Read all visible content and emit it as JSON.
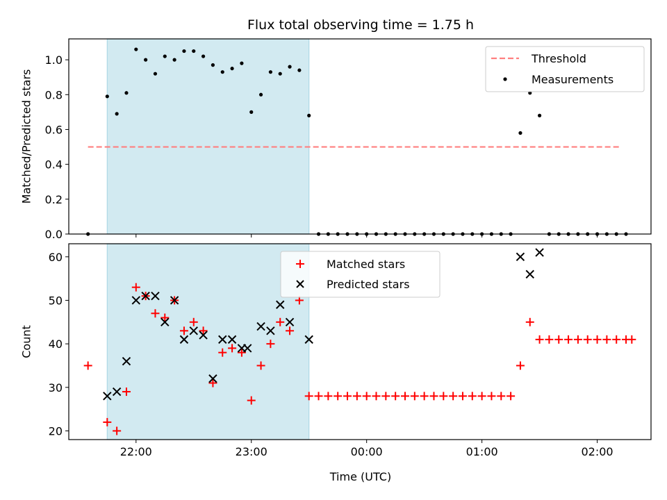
{
  "title": "Flux total observing time = 1.75 h",
  "colors": {
    "band": "#add8e6",
    "threshold": "#ff7f7f",
    "measurements": "#000000",
    "matched": "#ff0000",
    "predicted": "#000000"
  },
  "x_tick_labels": [
    "22:00",
    "23:00",
    "00:00",
    "01:00",
    "02:00"
  ],
  "x_axis_label": "Time (UTC)",
  "chart_data": [
    {
      "type": "scatter",
      "title": "Flux total observing time = 1.75 h",
      "xlabel": "",
      "ylabel": "Matched/Predicted stars",
      "xlim": [
        "21:25",
        "02:28"
      ],
      "ylim": [
        0,
        1.12
      ],
      "yticks": [
        "0.0",
        "0.2",
        "0.4",
        "0.6",
        "0.8",
        "1.0"
      ],
      "shaded_interval": [
        "21:45",
        "23:30"
      ],
      "threshold": {
        "name": "Threshold",
        "value": 0.5,
        "x": [
          "21:35",
          "02:12"
        ]
      },
      "legend": [
        "Threshold",
        "Measurements"
      ],
      "legend_position": "upper right",
      "series": [
        {
          "name": "Measurements",
          "points": [
            [
              "21:35",
              0
            ],
            [
              "21:45",
              0.79
            ],
            [
              "21:50",
              0.69
            ],
            [
              "21:55",
              0.81
            ],
            [
              "22:00",
              1.06
            ],
            [
              "22:05",
              1.0
            ],
            [
              "22:10",
              0.92
            ],
            [
              "22:15",
              1.02
            ],
            [
              "22:20",
              1.0
            ],
            [
              "22:25",
              1.05
            ],
            [
              "22:30",
              1.05
            ],
            [
              "22:35",
              1.02
            ],
            [
              "22:40",
              0.97
            ],
            [
              "22:45",
              0.93
            ],
            [
              "22:50",
              0.95
            ],
            [
              "22:55",
              0.98
            ],
            [
              "23:00",
              0.7
            ],
            [
              "23:05",
              0.8
            ],
            [
              "23:10",
              0.93
            ],
            [
              "23:15",
              0.92
            ],
            [
              "23:20",
              0.96
            ],
            [
              "23:25",
              0.94
            ],
            [
              "23:30",
              0.68
            ],
            [
              "23:35",
              0
            ],
            [
              "23:40",
              0
            ],
            [
              "23:45",
              0
            ],
            [
              "23:50",
              0
            ],
            [
              "23:55",
              0
            ],
            [
              "00:00",
              0
            ],
            [
              "00:05",
              0
            ],
            [
              "00:10",
              0
            ],
            [
              "00:15",
              0
            ],
            [
              "00:20",
              0
            ],
            [
              "00:25",
              0
            ],
            [
              "00:30",
              0
            ],
            [
              "00:35",
              0
            ],
            [
              "00:40",
              0
            ],
            [
              "00:45",
              0
            ],
            [
              "00:50",
              0
            ],
            [
              "00:55",
              0
            ],
            [
              "01:00",
              0
            ],
            [
              "01:05",
              0
            ],
            [
              "01:10",
              0
            ],
            [
              "01:15",
              0
            ],
            [
              "01:20",
              0.58
            ],
            [
              "01:25",
              0.81
            ],
            [
              "01:30",
              0.68
            ],
            [
              "01:35",
              0
            ],
            [
              "01:40",
              0
            ],
            [
              "01:45",
              0
            ],
            [
              "01:50",
              0
            ],
            [
              "01:55",
              0
            ],
            [
              "02:00",
              0
            ],
            [
              "02:05",
              0
            ],
            [
              "02:10",
              0
            ],
            [
              "02:15",
              0
            ]
          ]
        }
      ]
    },
    {
      "type": "scatter",
      "xlabel": "Time (UTC)",
      "ylabel": "Count",
      "xlim": [
        "21:25",
        "02:28"
      ],
      "ylim": [
        18,
        63
      ],
      "yticks": [
        "20",
        "30",
        "40",
        "50",
        "60"
      ],
      "shaded_interval": [
        "21:45",
        "23:30"
      ],
      "legend": [
        "Matched stars",
        "Predicted stars"
      ],
      "legend_position": "upper center",
      "series": [
        {
          "name": "Matched stars",
          "marker": "+",
          "points": [
            [
              "21:35",
              35
            ],
            [
              "21:45",
              22
            ],
            [
              "21:50",
              20
            ],
            [
              "21:55",
              29
            ],
            [
              "22:00",
              53
            ],
            [
              "22:05",
              51
            ],
            [
              "22:10",
              47
            ],
            [
              "22:15",
              46
            ],
            [
              "22:20",
              50
            ],
            [
              "22:25",
              43
            ],
            [
              "22:30",
              45
            ],
            [
              "22:35",
              43
            ],
            [
              "22:40",
              31
            ],
            [
              "22:45",
              38
            ],
            [
              "22:50",
              39
            ],
            [
              "22:55",
              38
            ],
            [
              "23:00",
              27
            ],
            [
              "23:05",
              35
            ],
            [
              "23:10",
              40
            ],
            [
              "23:15",
              45
            ],
            [
              "23:20",
              43
            ],
            [
              "23:25",
              50
            ],
            [
              "23:30",
              28
            ],
            [
              "23:35",
              28
            ],
            [
              "23:40",
              28
            ],
            [
              "23:45",
              28
            ],
            [
              "23:50",
              28
            ],
            [
              "23:55",
              28
            ],
            [
              "00:00",
              28
            ],
            [
              "00:05",
              28
            ],
            [
              "00:10",
              28
            ],
            [
              "00:15",
              28
            ],
            [
              "00:20",
              28
            ],
            [
              "00:25",
              28
            ],
            [
              "00:30",
              28
            ],
            [
              "00:35",
              28
            ],
            [
              "00:40",
              28
            ],
            [
              "00:45",
              28
            ],
            [
              "00:50",
              28
            ],
            [
              "00:55",
              28
            ],
            [
              "01:00",
              28
            ],
            [
              "01:05",
              28
            ],
            [
              "01:10",
              28
            ],
            [
              "01:15",
              28
            ],
            [
              "01:20",
              35
            ],
            [
              "01:25",
              45
            ],
            [
              "01:30",
              41
            ],
            [
              "01:35",
              41
            ],
            [
              "01:40",
              41
            ],
            [
              "01:45",
              41
            ],
            [
              "01:50",
              41
            ],
            [
              "01:55",
              41
            ],
            [
              "02:00",
              41
            ],
            [
              "02:05",
              41
            ],
            [
              "02:10",
              41
            ],
            [
              "02:15",
              41
            ],
            [
              "02:18",
              41
            ]
          ]
        },
        {
          "name": "Predicted stars",
          "marker": "x",
          "points": [
            [
              "21:45",
              28
            ],
            [
              "21:50",
              29
            ],
            [
              "21:55",
              36
            ],
            [
              "22:00",
              50
            ],
            [
              "22:05",
              51
            ],
            [
              "22:10",
              51
            ],
            [
              "22:15",
              45
            ],
            [
              "22:20",
              50
            ],
            [
              "22:25",
              41
            ],
            [
              "22:30",
              43
            ],
            [
              "22:35",
              42
            ],
            [
              "22:40",
              32
            ],
            [
              "22:45",
              41
            ],
            [
              "22:50",
              41
            ],
            [
              "22:55",
              39
            ],
            [
              "22:58",
              39
            ],
            [
              "23:05",
              44
            ],
            [
              "23:10",
              43
            ],
            [
              "23:15",
              49
            ],
            [
              "23:20",
              45
            ],
            [
              "23:30",
              41
            ],
            [
              "01:20",
              60
            ],
            [
              "01:25",
              56
            ],
            [
              "01:30",
              61
            ]
          ]
        }
      ]
    }
  ]
}
